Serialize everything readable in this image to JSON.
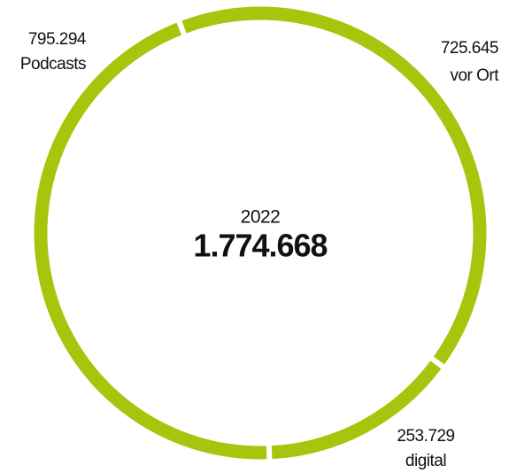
{
  "chart_data": {
    "type": "donut",
    "subtitle": "2022",
    "total": {
      "value": 1774668,
      "label": "1.774.668"
    },
    "categories": [
      "vor Ort",
      "digital",
      "Podcasts"
    ],
    "values": [
      725645,
      253729,
      795294
    ],
    "value_labels": [
      "725.645",
      "253.729",
      "795.294"
    ],
    "color": "#a8c40c"
  }
}
